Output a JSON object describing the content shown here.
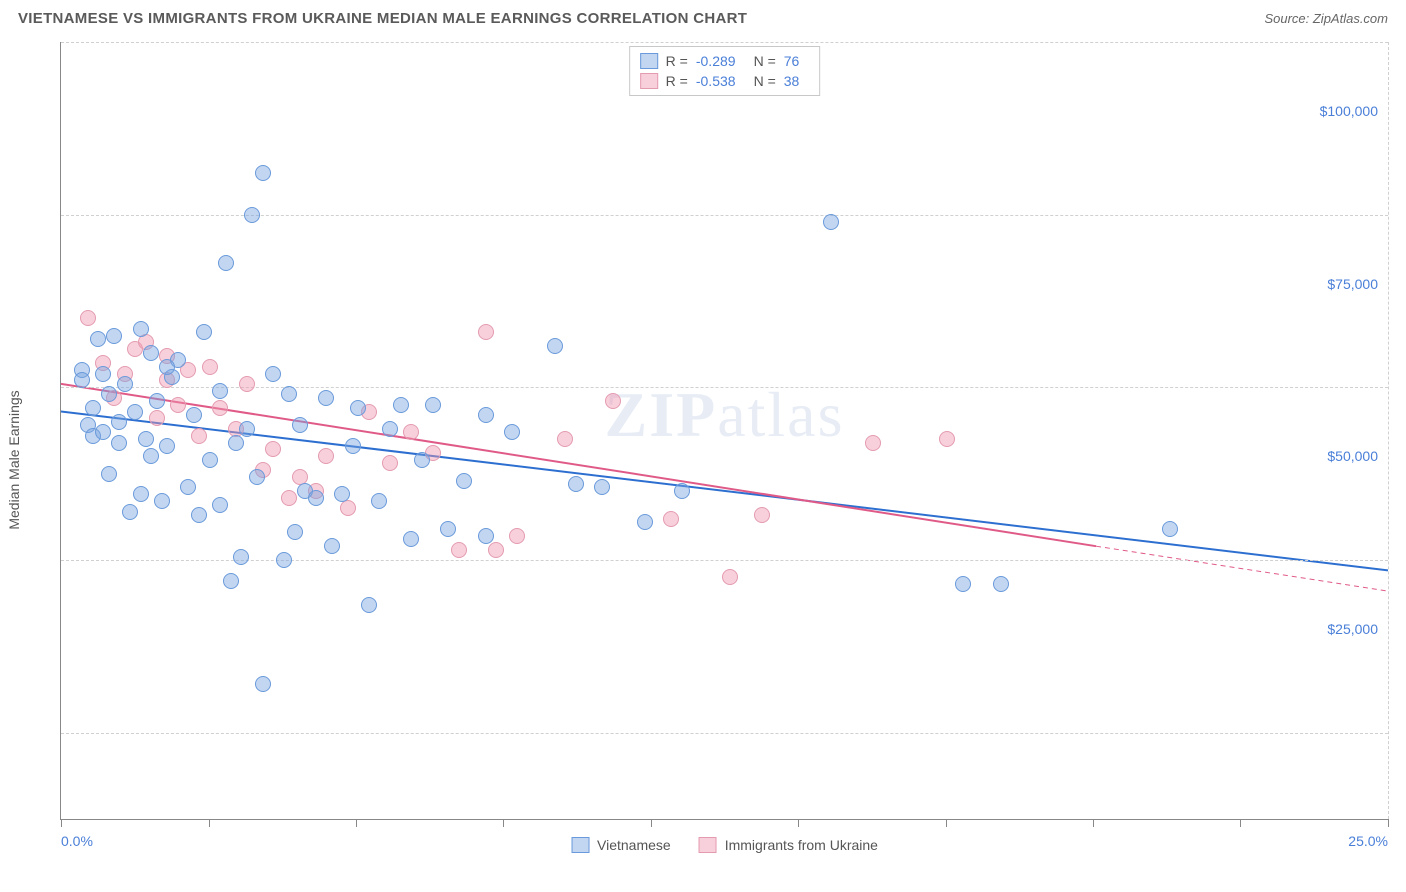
{
  "header": {
    "title": "VIETNAMESE VS IMMIGRANTS FROM UKRAINE MEDIAN MALE EARNINGS CORRELATION CHART",
    "source_prefix": "Source: ",
    "source_name": "ZipAtlas.com"
  },
  "chart": {
    "type": "scatter",
    "y_axis_label": "Median Male Earnings",
    "xlim": [
      0,
      25
    ],
    "ylim": [
      0,
      112500
    ],
    "x_ticks": [
      0,
      2.78,
      5.56,
      8.33,
      11.11,
      13.89,
      16.67,
      19.44,
      22.22,
      25
    ],
    "x_tick_labels": {
      "0": "0.0%",
      "25": "25.0%"
    },
    "y_gridlines": [
      12500,
      37500,
      62500,
      87500,
      112500
    ],
    "y_tick_labels": [
      {
        "v": 27500,
        "label": "$25,000"
      },
      {
        "v": 52500,
        "label": "$50,000"
      },
      {
        "v": 77500,
        "label": "$75,000"
      },
      {
        "v": 102500,
        "label": "$100,000"
      }
    ],
    "grid_color": "#d0d0d0",
    "axis_color": "#888888",
    "background_color": "#ffffff",
    "label_color_axis": "#555555",
    "tick_label_color": "#4a7fd8",
    "marker_radius": 8,
    "marker_stroke_width": 1,
    "watermark": "ZIPatlas"
  },
  "series": {
    "vietnamese": {
      "label": "Vietnamese",
      "fill_color": "rgba(120,165,225,0.45)",
      "stroke_color": "#6a9adb",
      "trend_color": "#2d6fd0",
      "trend_width": 2,
      "trend": {
        "x1": 0,
        "y1": 59000,
        "x2": 25,
        "y2": 36000
      },
      "R": "-0.289",
      "N": "76",
      "points": [
        [
          0.4,
          65000
        ],
        [
          0.4,
          63500
        ],
        [
          0.5,
          57000
        ],
        [
          0.6,
          55500
        ],
        [
          0.6,
          59500
        ],
        [
          0.7,
          69500
        ],
        [
          0.8,
          64500
        ],
        [
          0.8,
          56000
        ],
        [
          0.9,
          50000
        ],
        [
          0.9,
          61500
        ],
        [
          1.0,
          70000
        ],
        [
          1.1,
          57500
        ],
        [
          1.1,
          54500
        ],
        [
          1.2,
          63000
        ],
        [
          1.3,
          44500
        ],
        [
          1.4,
          59000
        ],
        [
          1.5,
          47000
        ],
        [
          1.5,
          71000
        ],
        [
          1.6,
          55000
        ],
        [
          1.7,
          67500
        ],
        [
          1.7,
          52500
        ],
        [
          1.8,
          60500
        ],
        [
          1.9,
          46000
        ],
        [
          2.0,
          54000
        ],
        [
          2.1,
          64000
        ],
        [
          2.2,
          66500
        ],
        [
          2.4,
          48000
        ],
        [
          2.5,
          58500
        ],
        [
          2.6,
          44000
        ],
        [
          2.7,
          70500
        ],
        [
          2.8,
          52000
        ],
        [
          3.0,
          45500
        ],
        [
          3.0,
          62000
        ],
        [
          3.1,
          80500
        ],
        [
          3.2,
          34500
        ],
        [
          3.3,
          54500
        ],
        [
          3.4,
          38000
        ],
        [
          3.5,
          56500
        ],
        [
          3.6,
          87500
        ],
        [
          3.7,
          49500
        ],
        [
          3.8,
          19500
        ],
        [
          4.0,
          64500
        ],
        [
          4.2,
          37500
        ],
        [
          3.8,
          93500
        ],
        [
          4.4,
          41500
        ],
        [
          4.5,
          57000
        ],
        [
          4.6,
          47500
        ],
        [
          4.8,
          46500
        ],
        [
          5.0,
          61000
        ],
        [
          5.1,
          39500
        ],
        [
          5.3,
          47000
        ],
        [
          5.5,
          54000
        ],
        [
          5.6,
          59500
        ],
        [
          5.8,
          31000
        ],
        [
          6.0,
          46000
        ],
        [
          6.2,
          56500
        ],
        [
          6.4,
          60000
        ],
        [
          6.6,
          40500
        ],
        [
          6.8,
          52000
        ],
        [
          7.0,
          60000
        ],
        [
          7.3,
          42000
        ],
        [
          7.6,
          49000
        ],
        [
          8.0,
          58500
        ],
        [
          8.0,
          41000
        ],
        [
          8.5,
          56000
        ],
        [
          9.3,
          68500
        ],
        [
          9.7,
          48500
        ],
        [
          10.2,
          48000
        ],
        [
          11.0,
          43000
        ],
        [
          11.7,
          47500
        ],
        [
          14.5,
          86500
        ],
        [
          17.0,
          34000
        ],
        [
          17.7,
          34000
        ],
        [
          20.9,
          42000
        ],
        [
          4.3,
          61500
        ],
        [
          2.0,
          65500
        ]
      ]
    },
    "ukraine": {
      "label": "Immigrants from Ukraine",
      "fill_color": "rgba(240,150,175,0.45)",
      "stroke_color": "#e49bb0",
      "trend_color": "#e05a88",
      "trend_width": 2,
      "trend_solid": {
        "x1": 0,
        "y1": 63000,
        "x2": 19.5,
        "y2": 39500
      },
      "trend_dashed": {
        "x1": 19.5,
        "y1": 39500,
        "x2": 25,
        "y2": 33000
      },
      "R": "-0.538",
      "N": "38",
      "points": [
        [
          0.5,
          72500
        ],
        [
          0.8,
          66000
        ],
        [
          1.0,
          61000
        ],
        [
          1.2,
          64500
        ],
        [
          1.4,
          68000
        ],
        [
          1.6,
          69000
        ],
        [
          1.8,
          58000
        ],
        [
          2.0,
          63500
        ],
        [
          2.2,
          60000
        ],
        [
          2.4,
          65000
        ],
        [
          2.6,
          55500
        ],
        [
          2.8,
          65500
        ],
        [
          3.0,
          59500
        ],
        [
          3.3,
          56500
        ],
        [
          3.5,
          63000
        ],
        [
          3.8,
          50500
        ],
        [
          4.0,
          53500
        ],
        [
          4.3,
          46500
        ],
        [
          4.5,
          49500
        ],
        [
          4.8,
          47500
        ],
        [
          5.0,
          52500
        ],
        [
          5.4,
          45000
        ],
        [
          5.8,
          59000
        ],
        [
          6.2,
          51500
        ],
        [
          6.6,
          56000
        ],
        [
          7.0,
          53000
        ],
        [
          7.5,
          39000
        ],
        [
          8.0,
          70500
        ],
        [
          8.2,
          39000
        ],
        [
          8.6,
          41000
        ],
        [
          9.5,
          55000
        ],
        [
          10.4,
          60500
        ],
        [
          11.5,
          43500
        ],
        [
          12.6,
          35000
        ],
        [
          13.2,
          44000
        ],
        [
          15.3,
          54500
        ],
        [
          16.7,
          55000
        ],
        [
          2.0,
          67000
        ]
      ]
    }
  },
  "legend": {
    "R_label": "R =",
    "N_label": "N ="
  }
}
